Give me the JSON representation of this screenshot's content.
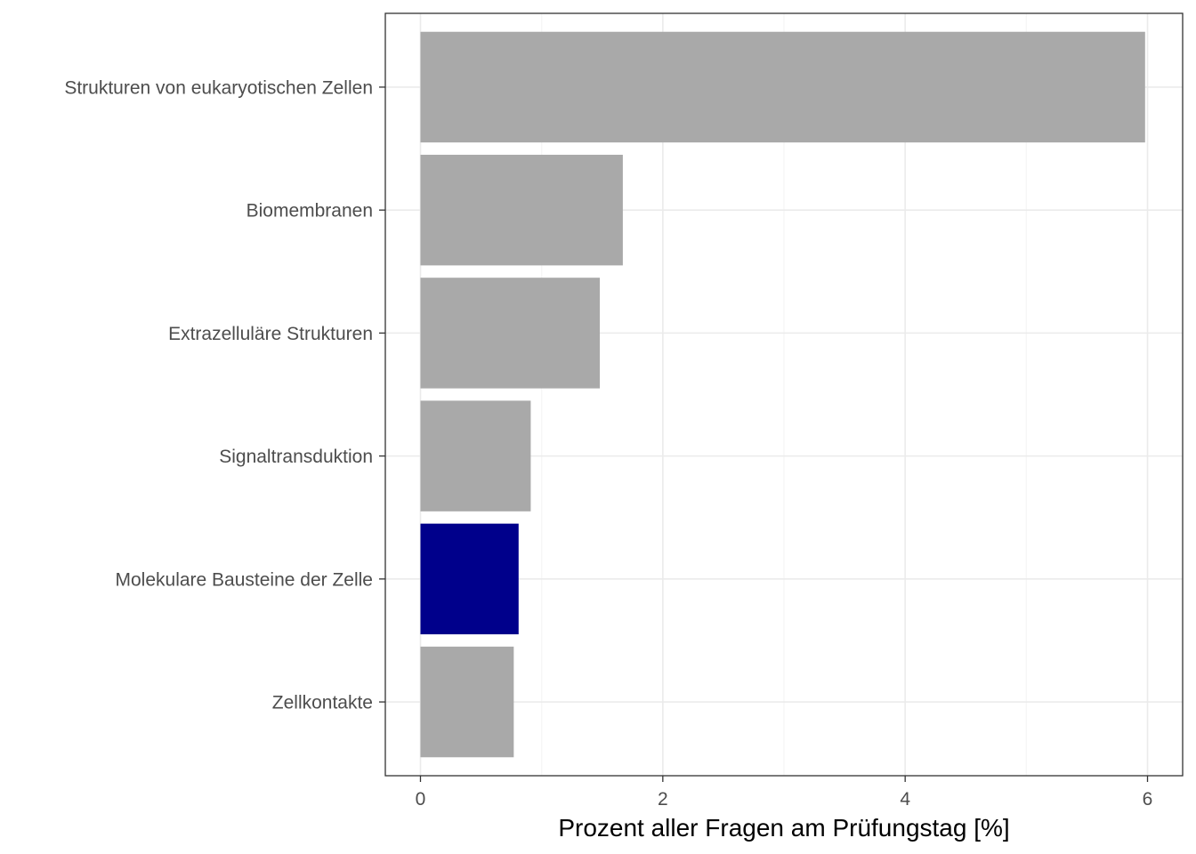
{
  "chart_data": {
    "type": "bar",
    "orientation": "horizontal",
    "categories": [
      "Strukturen von eukaryotischen Zellen",
      "Biomembranen",
      "Extrazelluläre Strukturen",
      "Signaltransduktion",
      "Molekulare Bausteine der Zelle",
      "Zellkontakte"
    ],
    "values": [
      5.98,
      1.67,
      1.48,
      0.91,
      0.81,
      0.77
    ],
    "highlight_index": 4,
    "title": "",
    "xlabel": "Prozent aller Fragen am Prüfungstag [%]",
    "ylabel": "",
    "xlim": [
      -0.29,
      6.29
    ],
    "xticks": [
      0,
      2,
      4,
      6
    ],
    "xtick_labels": [
      "0",
      "2",
      "4",
      "6"
    ],
    "grid": true,
    "legend": "none"
  },
  "colors": {
    "bar_default": "#A9A9A9",
    "bar_highlight": "#00008B",
    "grid_major": "#EBEBEB",
    "grid_minor": "#F5F5F5",
    "panel_border": "#333333",
    "tick_text": "#4D4D4D",
    "axis_title_text": "#000000"
  }
}
